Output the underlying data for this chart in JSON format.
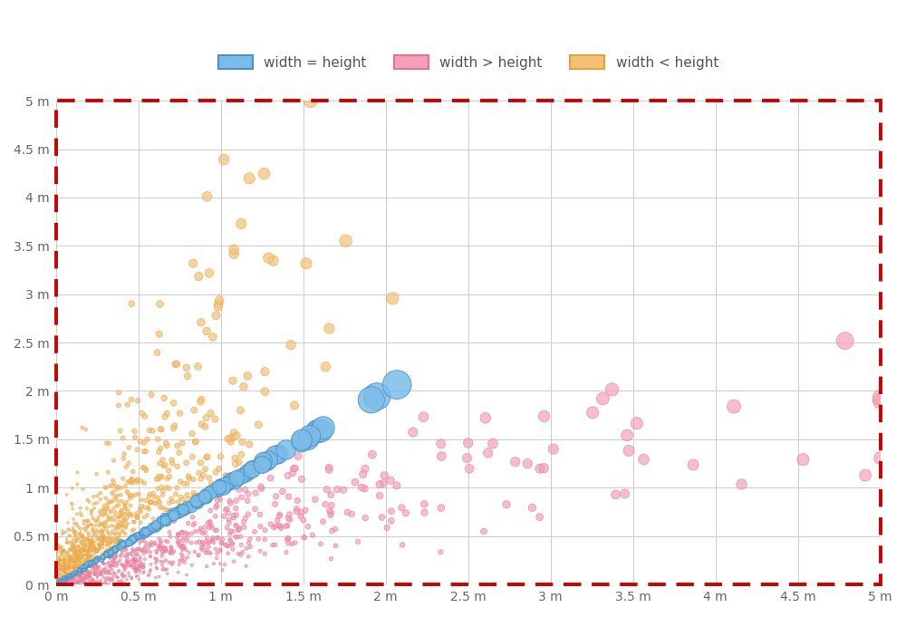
{
  "xlim": [
    0,
    5
  ],
  "ylim": [
    0,
    5
  ],
  "xticks": [
    0,
    0.5,
    1,
    1.5,
    2,
    2.5,
    3,
    3.5,
    4,
    4.5,
    5
  ],
  "yticks": [
    0,
    0.5,
    1,
    1.5,
    2,
    2.5,
    3,
    3.5,
    4,
    4.5,
    5
  ],
  "tick_labels": [
    "0 m",
    "0.5 m",
    "1 m",
    "1.5 m",
    "2 m",
    "2.5 m",
    "3 m",
    "3.5 m",
    "4 m",
    "4.5 m",
    "5 m"
  ],
  "color_equal": "#7bbce8",
  "color_greater": "#f4a0b8",
  "color_less": "#f5c07a",
  "border_equal": "#4a90c4",
  "border_greater": "#e87090",
  "border_less": "#e8a030",
  "dashed_border_color": "#cc0000",
  "background_color": "#ffffff",
  "grid_color": "#cccccc",
  "legend_labels": [
    "width = height",
    "width > height",
    "width < height"
  ],
  "seed": 42
}
